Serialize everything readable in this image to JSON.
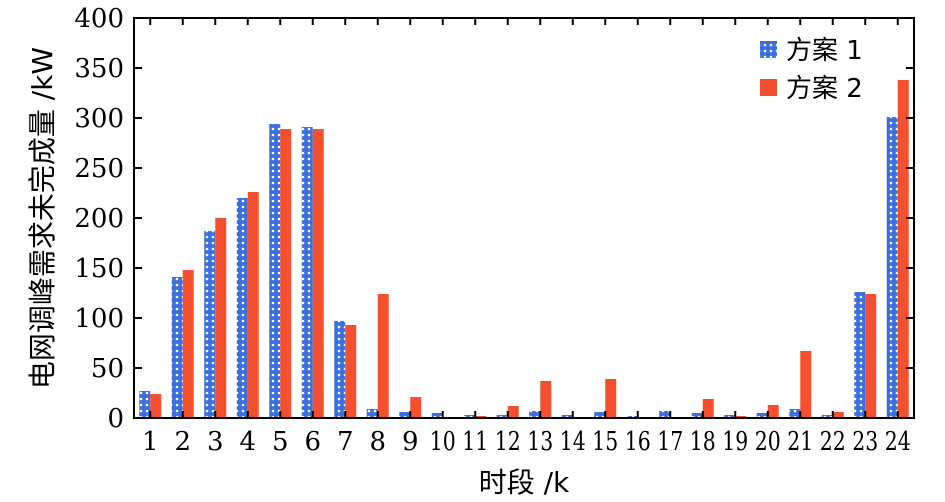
{
  "chart_data": {
    "type": "bar",
    "title": "",
    "xlabel": "时段 /k",
    "ylabel": "电网调峰需求未完成量 /kW",
    "ylim": [
      0,
      400
    ],
    "yticks": [
      0,
      50,
      100,
      150,
      200,
      250,
      300,
      350,
      400
    ],
    "grid": false,
    "legend_position": "top-right",
    "categories": [
      "1",
      "2",
      "3",
      "4",
      "5",
      "6",
      "7",
      "8",
      "9",
      "10",
      "11",
      "12",
      "13",
      "14",
      "15",
      "16",
      "17",
      "18",
      "19",
      "20",
      "21",
      "22",
      "23",
      "24"
    ],
    "series": [
      {
        "name": "方案 1",
        "color": "#3b6fe0",
        "pattern": "dotted",
        "values": [
          27,
          141,
          187,
          220,
          294,
          291,
          97,
          9,
          6,
          5,
          3,
          3,
          7,
          3,
          6,
          2,
          7,
          5,
          3,
          5,
          9,
          3,
          126,
          301
        ]
      },
      {
        "name": "方案 2",
        "color": "#f4502f",
        "pattern": "solid",
        "values": [
          24,
          148,
          200,
          226,
          289,
          289,
          93,
          124,
          21,
          1,
          2,
          12,
          37,
          1,
          39,
          1,
          1,
          19,
          2,
          13,
          67,
          6,
          124,
          338
        ]
      }
    ]
  }
}
